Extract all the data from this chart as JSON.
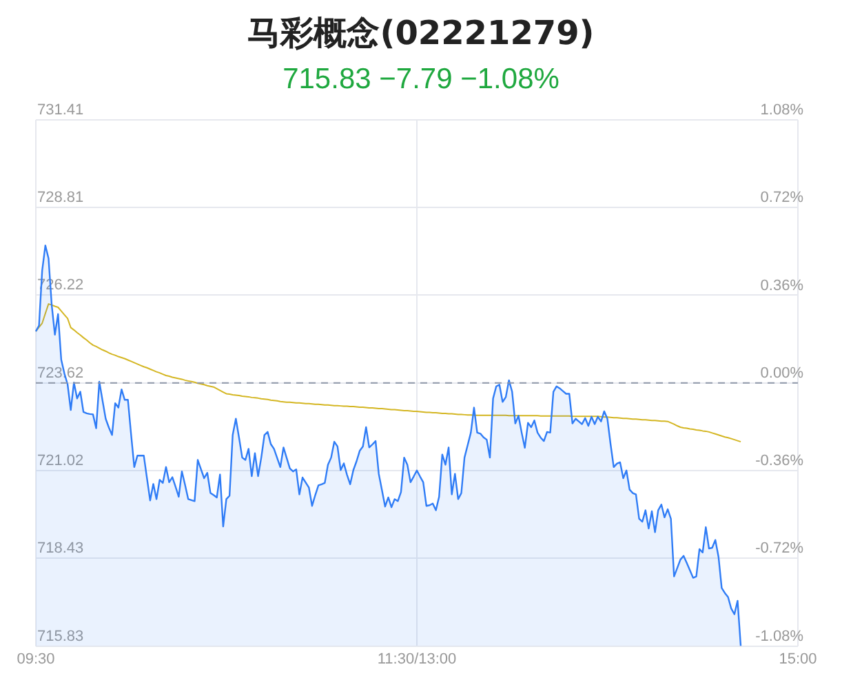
{
  "chart_data": {
    "type": "line",
    "title": "马彩概念(02221279)",
    "subtitle": "715.83  −7.79  −1.08%",
    "categories": [
      "09:30",
      null,
      null,
      null,
      null,
      null,
      null,
      null,
      null,
      null,
      null,
      null,
      null,
      null,
      null,
      null,
      null,
      null,
      null,
      null,
      null,
      null,
      null,
      null,
      null,
      null,
      null,
      null,
      null,
      null,
      null,
      null,
      null,
      null,
      null,
      null,
      null,
      null,
      null,
      null,
      null,
      null,
      null,
      null,
      null,
      null,
      null,
      null,
      null,
      null,
      null,
      null,
      null,
      null,
      null,
      null,
      null,
      null,
      null,
      null,
      null,
      null,
      null,
      null,
      null,
      null,
      null,
      null,
      null,
      null,
      null,
      null,
      null,
      null,
      null,
      null,
      null,
      null,
      null,
      null,
      null,
      null,
      null,
      null,
      null,
      null,
      null,
      null,
      null,
      null,
      null,
      null,
      null,
      null,
      null,
      null,
      null,
      null,
      null,
      null,
      null,
      null,
      null,
      null,
      null,
      null,
      null,
      null,
      null,
      null,
      null,
      null,
      null,
      null,
      null,
      null,
      null,
      null,
      null,
      null,
      "11:30/13:00",
      null,
      null,
      null,
      null,
      null,
      null,
      null,
      null,
      null,
      null,
      null,
      null,
      null,
      null,
      null,
      null,
      null,
      null,
      null,
      null,
      null,
      null,
      null,
      null,
      null,
      null,
      null,
      null,
      null,
      null,
      null,
      null,
      null,
      null,
      null,
      null,
      null,
      null,
      null,
      null,
      null,
      null,
      null,
      null,
      null,
      null,
      null,
      null,
      null,
      null,
      null,
      null,
      null,
      null,
      null,
      null,
      null,
      null,
      null,
      null,
      null,
      null,
      null,
      null,
      null,
      null,
      null,
      null,
      null,
      null,
      null,
      null,
      null,
      null,
      null,
      null,
      null,
      null,
      null,
      null,
      null,
      null,
      null,
      null,
      null,
      null,
      null,
      null,
      null,
      null,
      null,
      null,
      null,
      null,
      null,
      null,
      null,
      null,
      null,
      null,
      null,
      null,
      null,
      null,
      null,
      null,
      null,
      null,
      null,
      null,
      null,
      null,
      null,
      null,
      null,
      null,
      null,
      null,
      null,
      "15:00"
    ],
    "ylim": [
      715.83,
      731.41
    ],
    "yticks": [
      715.83,
      718.43,
      721.02,
      723.62,
      726.22,
      728.81,
      731.41
    ],
    "y2lim": [
      -1.08,
      1.08
    ],
    "y2ticks": [
      {
        "value": -1.08,
        "label": "-1.08%"
      },
      {
        "value": -0.72,
        "label": "-0.72%"
      },
      {
        "value": -0.36,
        "label": "-0.36%"
      },
      {
        "value": 0,
        "label": "0.00%"
      },
      {
        "value": 0.36,
        "label": "0.36%"
      },
      {
        "value": 0.72,
        "label": "0.72%"
      },
      {
        "value": 1.08,
        "label": "1.08%"
      }
    ],
    "grid": true,
    "ref_lines": [
      {
        "axis": "y",
        "value": 723.62,
        "color": "#8e97a8",
        "line_style": "dashed"
      }
    ],
    "series": [
      {
        "type": "area",
        "color": "#2f7cf6",
        "values": [
          725.15,
          725.32,
          726.95,
          727.69,
          727.31,
          725.93,
          725.05,
          725.66,
          724.31,
          723.9,
          723.58,
          722.82,
          723.63,
          723.16,
          723.36,
          722.76,
          722.72,
          722.7,
          722.69,
          722.28,
          723.66,
          723.1,
          722.56,
          722.3,
          722.08,
          723.02,
          722.89,
          723.43,
          723.12,
          723.12,
          722.1,
          721.13,
          721.47,
          721.47,
          721.47,
          720.8,
          720.14,
          720.63,
          720.18,
          720.75,
          720.66,
          721.13,
          720.68,
          720.83,
          720.55,
          720.25,
          721.0,
          720.6,
          720.18,
          720.15,
          720.12,
          721.34,
          721.07,
          720.8,
          720.96,
          720.36,
          720.3,
          720.23,
          720.91,
          719.37,
          720.18,
          720.28,
          722.08,
          722.56,
          722.0,
          721.41,
          721.34,
          721.67,
          720.86,
          721.54,
          720.86,
          721.41,
          722.08,
          722.17,
          721.81,
          721.67,
          721.4,
          721.13,
          721.71,
          721.4,
          721.09,
          721.0,
          721.06,
          720.32,
          720.82,
          720.67,
          720.52,
          719.98,
          720.3,
          720.59,
          720.62,
          720.66,
          721.2,
          721.41,
          721.88,
          721.74,
          721.04,
          721.24,
          720.9,
          720.62,
          721.04,
          721.3,
          721.61,
          721.74,
          722.31,
          721.71,
          721.8,
          721.9,
          720.93,
          720.45,
          719.96,
          720.23,
          719.94,
          720.18,
          720.12,
          720.39,
          721.41,
          721.2,
          720.68,
          720.85,
          721.03,
          720.85,
          720.68,
          719.98,
          720.0,
          720.05,
          719.85,
          720.25,
          721.5,
          721.2,
          721.71,
          720.32,
          720.93,
          720.18,
          720.36,
          721.41,
          721.78,
          722.15,
          722.89,
          722.15,
          722.12,
          722.01,
          721.94,
          721.41,
          723.16,
          723.52,
          723.57,
          723.06,
          723.2,
          723.7,
          723.36,
          722.42,
          722.65,
          722.15,
          721.7,
          722.44,
          722.31,
          722.51,
          722.15,
          722.0,
          721.9,
          722.17,
          722.15,
          723.36,
          723.52,
          723.46,
          723.38,
          723.3,
          723.3,
          722.42,
          722.56,
          722.48,
          722.4,
          722.58,
          722.35,
          722.62,
          722.4,
          722.62,
          722.48,
          722.78,
          722.56,
          721.81,
          721.13,
          721.23,
          721.27,
          720.8,
          721.03,
          720.46,
          720.36,
          720.32,
          719.6,
          719.51,
          719.85,
          719.31,
          719.82,
          719.2,
          719.85,
          720.02,
          719.64,
          719.88,
          719.6,
          717.89,
          718.14,
          718.39,
          718.5,
          718.29,
          718.07,
          717.85,
          717.89,
          718.7,
          718.6,
          719.35,
          718.72,
          718.74,
          718.97,
          718.47,
          717.55,
          717.4,
          717.28,
          716.94,
          716.77,
          717.17,
          715.83,
          null,
          null,
          null,
          null,
          null,
          null,
          null,
          null,
          null,
          null,
          null,
          null,
          null,
          null,
          null,
          null,
          null,
          null
        ]
      },
      {
        "color": "#d4b622",
        "values": [
          725.15,
          725.27,
          725.39,
          725.68,
          725.96,
          725.93,
          725.89,
          725.86,
          725.75,
          725.64,
          725.53,
          725.26,
          725.19,
          725.11,
          725.04,
          724.96,
          724.89,
          724.81,
          724.74,
          724.7,
          724.65,
          724.6,
          724.56,
          724.51,
          724.47,
          724.44,
          724.4,
          724.37,
          724.34,
          724.3,
          724.26,
          724.22,
          724.18,
          724.14,
          724.1,
          724.07,
          724.03,
          723.99,
          723.95,
          723.92,
          723.88,
          723.84,
          723.82,
          723.79,
          723.77,
          723.75,
          723.73,
          723.7,
          723.68,
          723.66,
          723.64,
          723.61,
          723.59,
          723.57,
          723.54,
          723.52,
          723.5,
          723.45,
          723.4,
          723.35,
          723.3,
          723.29,
          723.27,
          723.26,
          723.25,
          723.23,
          723.22,
          723.21,
          723.19,
          723.18,
          723.17,
          723.15,
          723.14,
          723.13,
          723.11,
          723.1,
          723.09,
          723.07,
          723.06,
          723.05,
          723.05,
          723.04,
          723.03,
          723.03,
          723.02,
          723.01,
          723.01,
          723.0,
          722.99,
          722.99,
          722.98,
          722.97,
          722.97,
          722.96,
          722.95,
          722.95,
          722.94,
          722.93,
          722.93,
          722.92,
          722.92,
          722.91,
          722.9,
          722.9,
          722.89,
          722.88,
          722.88,
          722.87,
          722.86,
          722.86,
          722.85,
          722.84,
          722.83,
          722.83,
          722.82,
          722.81,
          722.8,
          722.8,
          722.79,
          722.78,
          722.78,
          722.77,
          722.76,
          722.75,
          722.75,
          722.74,
          722.74,
          722.73,
          722.72,
          722.72,
          722.71,
          722.71,
          722.7,
          722.69,
          722.69,
          722.68,
          722.67,
          722.67,
          722.66,
          722.66,
          722.66,
          722.66,
          722.66,
          722.66,
          722.66,
          722.66,
          722.66,
          722.66,
          722.66,
          722.65,
          722.65,
          722.65,
          722.65,
          722.65,
          722.65,
          722.65,
          722.65,
          722.65,
          722.65,
          722.64,
          722.64,
          722.64,
          722.64,
          722.64,
          722.64,
          722.64,
          722.64,
          722.64,
          722.64,
          722.63,
          722.63,
          722.63,
          722.63,
          722.63,
          722.63,
          722.63,
          722.63,
          722.63,
          722.62,
          722.61,
          722.61,
          722.6,
          722.59,
          722.59,
          722.58,
          722.57,
          722.57,
          722.56,
          722.55,
          722.55,
          722.54,
          722.53,
          722.53,
          722.52,
          722.51,
          722.51,
          722.5,
          722.49,
          722.49,
          722.48,
          722.44,
          722.4,
          722.35,
          722.31,
          722.29,
          722.28,
          722.26,
          722.25,
          722.23,
          722.22,
          722.2,
          722.19,
          722.17,
          722.14,
          722.11,
          722.08,
          722.05,
          722.02,
          722.0,
          721.97,
          721.94,
          721.91,
          721.88,
          null,
          null,
          null,
          null,
          null,
          null,
          null,
          null,
          null,
          null,
          null,
          null,
          null,
          null,
          null,
          null,
          null,
          null
        ]
      }
    ]
  }
}
